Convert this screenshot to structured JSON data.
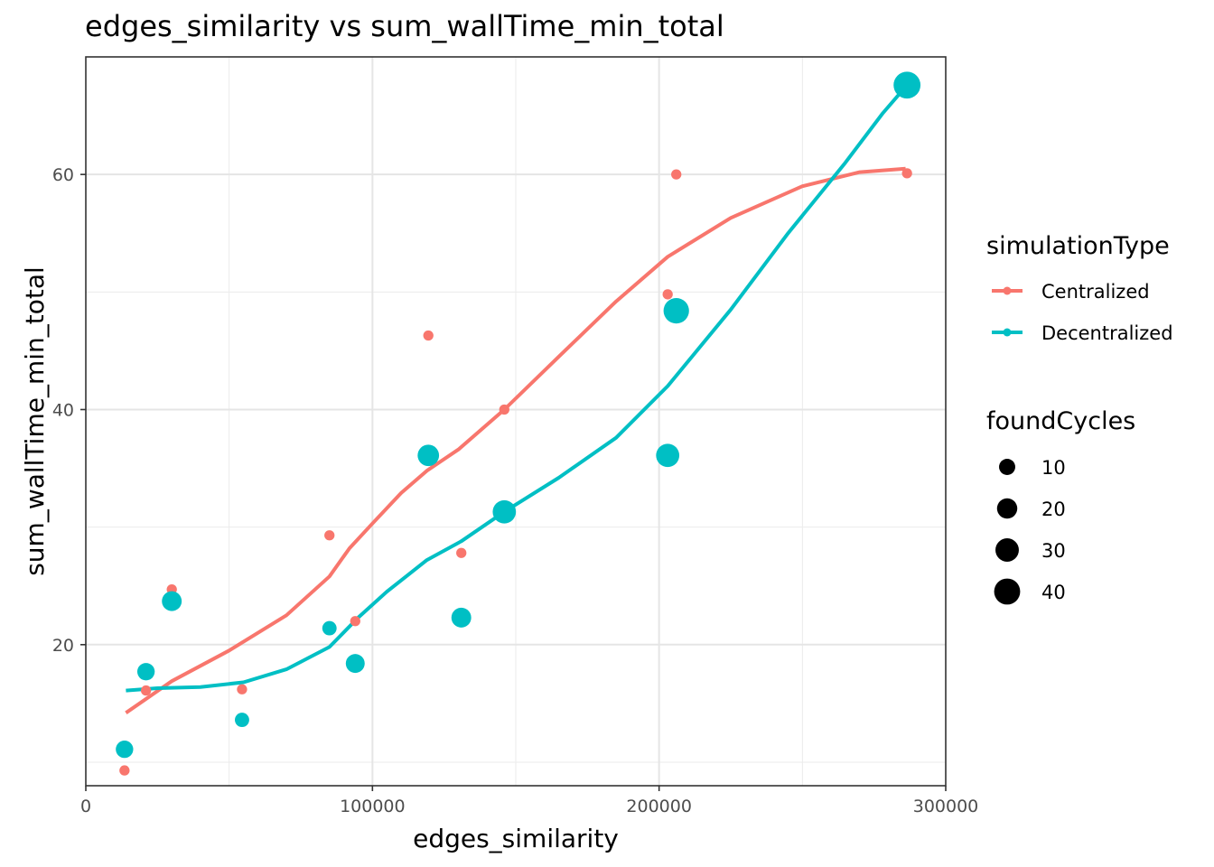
{
  "chart_data": {
    "type": "scatter",
    "title": "edges_similarity  vs  sum_wallTime_min_total",
    "xlabel": "edges_similarity",
    "ylabel": "sum_wallTime_min_total",
    "xlim": [
      0,
      300000
    ],
    "ylim": [
      8,
      70
    ],
    "x_ticks": [
      0,
      100000,
      200000,
      300000
    ],
    "x_tick_labels": [
      "0",
      "100000",
      "200000",
      "300000"
    ],
    "y_ticks": [
      20,
      40,
      60
    ],
    "y_tick_labels": [
      "20",
      "40",
      "60"
    ],
    "grid": true,
    "legend_placement": "right",
    "color_legend": {
      "title": "simulationType",
      "entries": [
        {
          "label": "Centralized",
          "color": "#F8766D"
        },
        {
          "label": "Decentralized",
          "color": "#00BFC4"
        }
      ]
    },
    "size_legend": {
      "title": "foundCycles",
      "entries": [
        {
          "label": "10",
          "value": 10
        },
        {
          "label": "20",
          "value": 20
        },
        {
          "label": "30",
          "value": 30
        },
        {
          "label": "40",
          "value": 40
        }
      ]
    },
    "series": [
      {
        "name": "Centralized",
        "color": "#F8766D",
        "points": [
          {
            "x": 13500,
            "y": 9.3,
            "size": 1
          },
          {
            "x": 21000,
            "y": 16.1,
            "size": 1
          },
          {
            "x": 30000,
            "y": 24.7,
            "size": 1
          },
          {
            "x": 54500,
            "y": 16.2,
            "size": 1
          },
          {
            "x": 85000,
            "y": 29.3,
            "size": 1
          },
          {
            "x": 94000,
            "y": 22.0,
            "size": 1
          },
          {
            "x": 119500,
            "y": 46.3,
            "size": 1
          },
          {
            "x": 131000,
            "y": 27.8,
            "size": 1
          },
          {
            "x": 146000,
            "y": 40.0,
            "size": 1
          },
          {
            "x": 203000,
            "y": 49.8,
            "size": 1
          },
          {
            "x": 206000,
            "y": 60.0,
            "size": 1
          },
          {
            "x": 286500,
            "y": 60.1,
            "size": 1
          }
        ],
        "smooth": [
          {
            "x": 14000,
            "y": 14.2
          },
          {
            "x": 30000,
            "y": 16.9
          },
          {
            "x": 50000,
            "y": 19.5
          },
          {
            "x": 70000,
            "y": 22.5
          },
          {
            "x": 85000,
            "y": 25.8
          },
          {
            "x": 92000,
            "y": 28.2
          },
          {
            "x": 100000,
            "y": 30.3
          },
          {
            "x": 110000,
            "y": 32.9
          },
          {
            "x": 119000,
            "y": 34.8
          },
          {
            "x": 130000,
            "y": 36.6
          },
          {
            "x": 146000,
            "y": 40.0
          },
          {
            "x": 165000,
            "y": 44.5
          },
          {
            "x": 185000,
            "y": 49.2
          },
          {
            "x": 203000,
            "y": 53.0
          },
          {
            "x": 225000,
            "y": 56.3
          },
          {
            "x": 250000,
            "y": 59.0
          },
          {
            "x": 270000,
            "y": 60.2
          },
          {
            "x": 286000,
            "y": 60.5
          }
        ]
      },
      {
        "name": "Decentralized",
        "color": "#00BFC4",
        "points": [
          {
            "x": 13500,
            "y": 11.1,
            "size": 10
          },
          {
            "x": 21000,
            "y": 17.7,
            "size": 10
          },
          {
            "x": 30000,
            "y": 23.7,
            "size": 15
          },
          {
            "x": 54500,
            "y": 13.6,
            "size": 5
          },
          {
            "x": 85000,
            "y": 21.4,
            "size": 5
          },
          {
            "x": 94000,
            "y": 18.4,
            "size": 13
          },
          {
            "x": 119500,
            "y": 36.1,
            "size": 19
          },
          {
            "x": 131000,
            "y": 22.3,
            "size": 15
          },
          {
            "x": 146000,
            "y": 31.3,
            "size": 24
          },
          {
            "x": 203000,
            "y": 36.1,
            "size": 24
          },
          {
            "x": 206000,
            "y": 48.4,
            "size": 31
          },
          {
            "x": 286500,
            "y": 67.6,
            "size": 36
          }
        ],
        "smooth": [
          {
            "x": 14000,
            "y": 16.1
          },
          {
            "x": 25000,
            "y": 16.3
          },
          {
            "x": 40000,
            "y": 16.4
          },
          {
            "x": 55000,
            "y": 16.8
          },
          {
            "x": 70000,
            "y": 17.9
          },
          {
            "x": 85000,
            "y": 19.8
          },
          {
            "x": 95000,
            "y": 22.3
          },
          {
            "x": 105000,
            "y": 24.5
          },
          {
            "x": 119000,
            "y": 27.2
          },
          {
            "x": 131000,
            "y": 28.8
          },
          {
            "x": 146000,
            "y": 31.3
          },
          {
            "x": 165000,
            "y": 34.2
          },
          {
            "x": 185000,
            "y": 37.6
          },
          {
            "x": 203000,
            "y": 42.0
          },
          {
            "x": 225000,
            "y": 48.5
          },
          {
            "x": 245000,
            "y": 55.0
          },
          {
            "x": 265000,
            "y": 61.0
          },
          {
            "x": 278000,
            "y": 65.2
          },
          {
            "x": 286500,
            "y": 67.6
          }
        ]
      }
    ]
  }
}
